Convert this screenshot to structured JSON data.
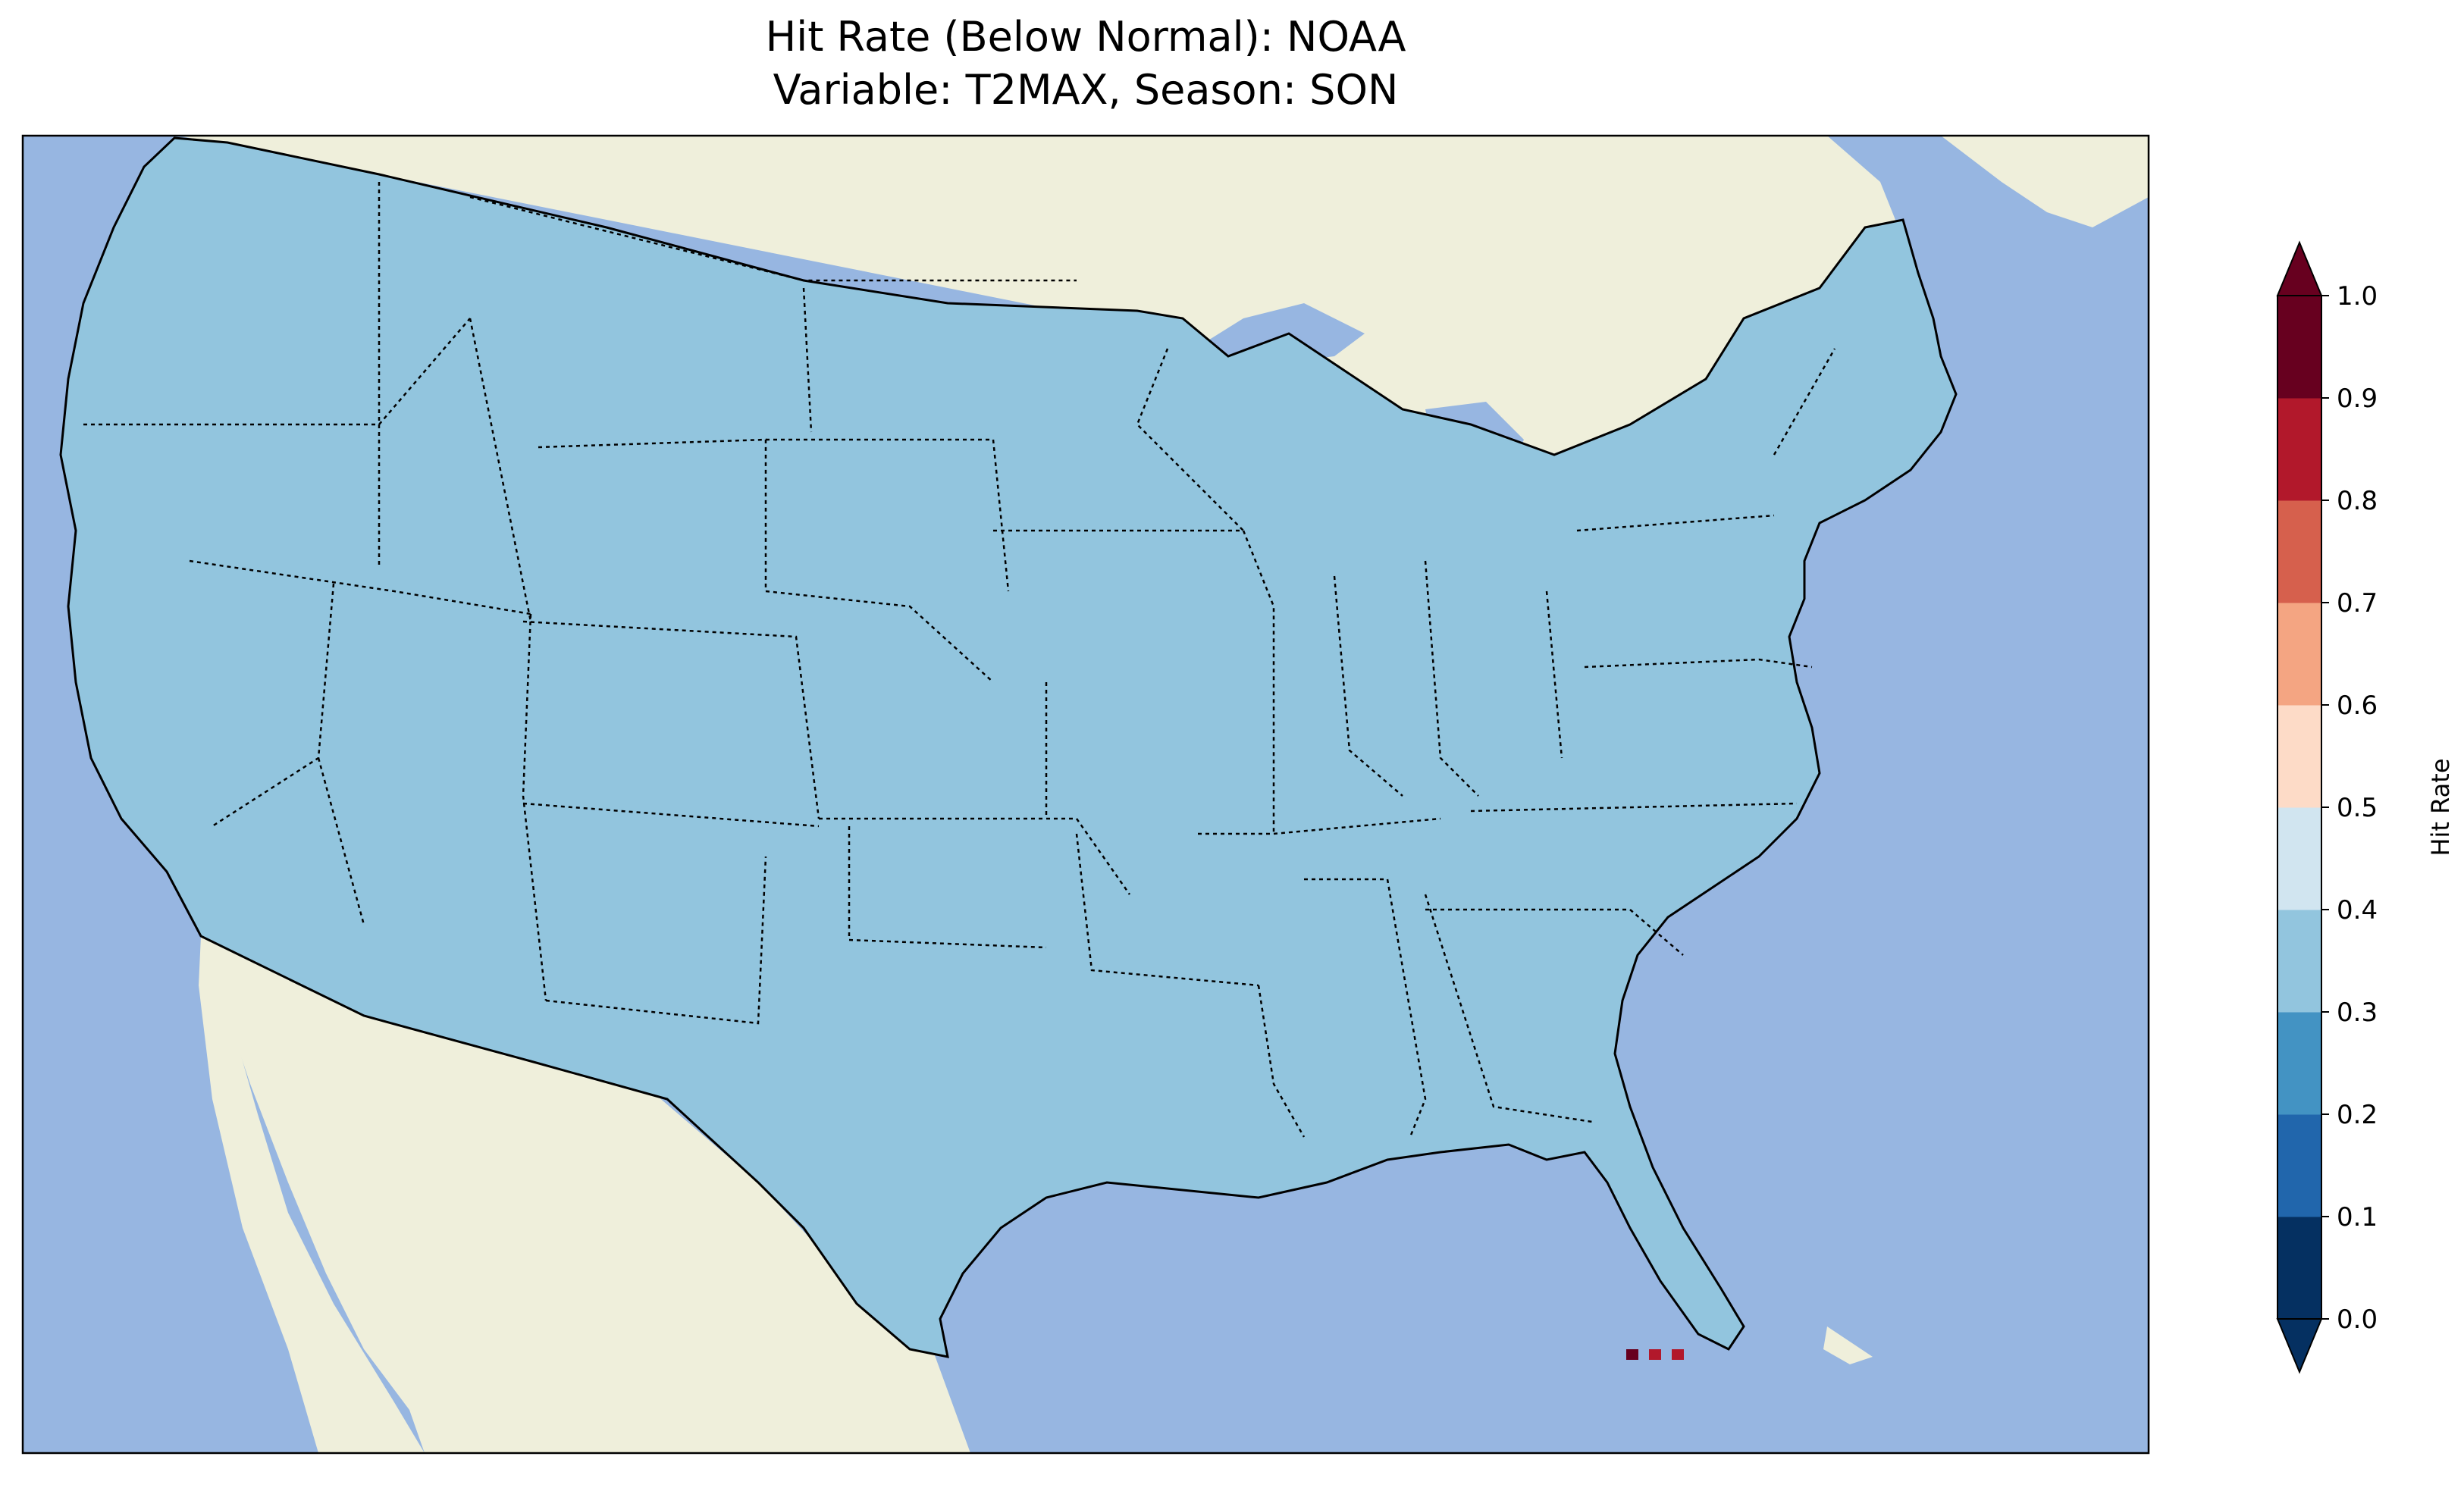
{
  "title": {
    "line1": "Hit Rate (Below Normal): NOAA",
    "line2": "Variable: T2MAX, Season: SON"
  },
  "colorbar": {
    "label": "Hit Rate",
    "levels": [
      0.0,
      0.1,
      0.2,
      0.3,
      0.4,
      0.5,
      0.6,
      0.7,
      0.8,
      0.9,
      1.0
    ],
    "tick_labels": [
      "0.0",
      "0.1",
      "0.2",
      "0.3",
      "0.4",
      "0.5",
      "0.6",
      "0.7",
      "0.8",
      "0.9",
      "1.0"
    ],
    "colors": [
      "#053061",
      "#2166ac",
      "#4393c3",
      "#92c5de",
      "#d1e5f0",
      "#fddbc7",
      "#f4a582",
      "#d6604d",
      "#b2182b",
      "#67001f"
    ],
    "extend": "both"
  },
  "colors": {
    "ocean": "#97b6e1",
    "land": "#efefdb"
  }
}
